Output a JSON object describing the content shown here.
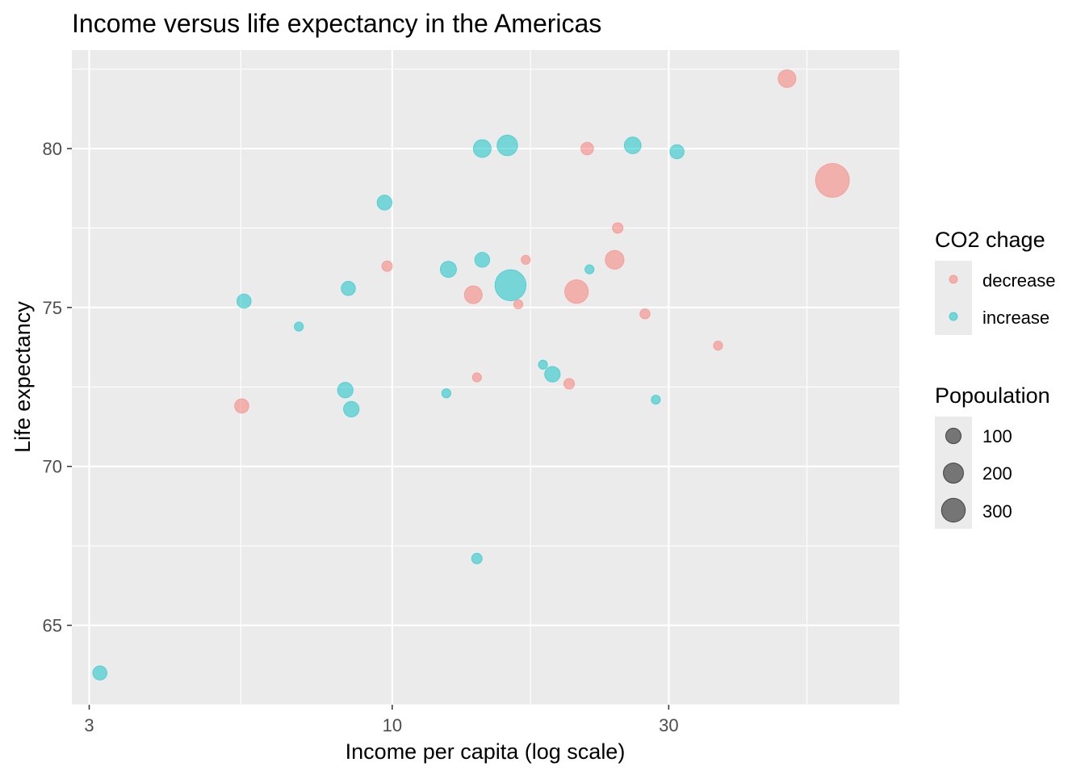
{
  "chart_data": {
    "type": "scatter",
    "title": "Income versus life expectancy in the Americas",
    "xlabel": "Income per capita (log scale)",
    "ylabel": "Life expectancy",
    "x_scale": "log",
    "xlim": [
      2.8,
      75
    ],
    "ylim": [
      62.5,
      83.1
    ],
    "x_ticks": [
      3,
      10,
      30
    ],
    "y_ticks": [
      65,
      70,
      75,
      80
    ],
    "grid": true,
    "panel_background": "#ebebeb",
    "legend_position": "right",
    "color_legend": {
      "title": "CO2 chage",
      "items": [
        {
          "label": "decrease",
          "color": "#f8766d"
        },
        {
          "label": "increase",
          "color": "#00bfc4"
        }
      ]
    },
    "size_legend": {
      "title": "Popoulation",
      "items": [
        {
          "label": "100",
          "value": 100
        },
        {
          "label": "200",
          "value": 200
        },
        {
          "label": "300",
          "value": 300
        }
      ]
    },
    "series": [
      {
        "co2_change": "decrease",
        "color": "#f8766d",
        "points": [
          {
            "x": 5.5,
            "y": 71.9,
            "pop": 30
          },
          {
            "x": 9.8,
            "y": 76.3,
            "pop": 10
          },
          {
            "x": 13.8,
            "y": 75.4,
            "pop": 60
          },
          {
            "x": 14.0,
            "y": 72.8,
            "pop": 5
          },
          {
            "x": 16.5,
            "y": 75.1,
            "pop": 5
          },
          {
            "x": 17.0,
            "y": 76.5,
            "pop": 5
          },
          {
            "x": 20.2,
            "y": 72.6,
            "pop": 10
          },
          {
            "x": 20.8,
            "y": 75.5,
            "pop": 130
          },
          {
            "x": 21.7,
            "y": 80.0,
            "pop": 20
          },
          {
            "x": 24.2,
            "y": 76.5,
            "pop": 70
          },
          {
            "x": 24.5,
            "y": 77.5,
            "pop": 10
          },
          {
            "x": 27.3,
            "y": 74.8,
            "pop": 8
          },
          {
            "x": 36.5,
            "y": 73.8,
            "pop": 5
          },
          {
            "x": 48.0,
            "y": 82.2,
            "pop": 60
          },
          {
            "x": 57.5,
            "y": 79.0,
            "pop": 320
          }
        ]
      },
      {
        "co2_change": "increase",
        "color": "#00bfc4",
        "points": [
          {
            "x": 3.13,
            "y": 63.5,
            "pop": 30
          },
          {
            "x": 5.55,
            "y": 75.2,
            "pop": 30
          },
          {
            "x": 6.9,
            "y": 74.4,
            "pop": 5
          },
          {
            "x": 8.3,
            "y": 72.4,
            "pop": 40
          },
          {
            "x": 8.4,
            "y": 75.6,
            "pop": 30
          },
          {
            "x": 8.5,
            "y": 71.8,
            "pop": 40
          },
          {
            "x": 9.7,
            "y": 78.3,
            "pop": 35
          },
          {
            "x": 12.4,
            "y": 72.3,
            "pop": 5
          },
          {
            "x": 12.5,
            "y": 76.2,
            "pop": 45
          },
          {
            "x": 14.0,
            "y": 67.1,
            "pop": 10
          },
          {
            "x": 14.3,
            "y": 80.0,
            "pop": 60
          },
          {
            "x": 14.3,
            "y": 76.5,
            "pop": 35
          },
          {
            "x": 15.8,
            "y": 80.1,
            "pop": 90
          },
          {
            "x": 16.0,
            "y": 75.7,
            "pop": 260
          },
          {
            "x": 18.2,
            "y": 73.2,
            "pop": 5
          },
          {
            "x": 18.9,
            "y": 72.9,
            "pop": 40
          },
          {
            "x": 21.9,
            "y": 76.2,
            "pop": 5
          },
          {
            "x": 26.0,
            "y": 80.1,
            "pop": 50
          },
          {
            "x": 28.5,
            "y": 72.1,
            "pop": 5
          },
          {
            "x": 31.0,
            "y": 79.9,
            "pop": 30
          }
        ]
      }
    ]
  }
}
